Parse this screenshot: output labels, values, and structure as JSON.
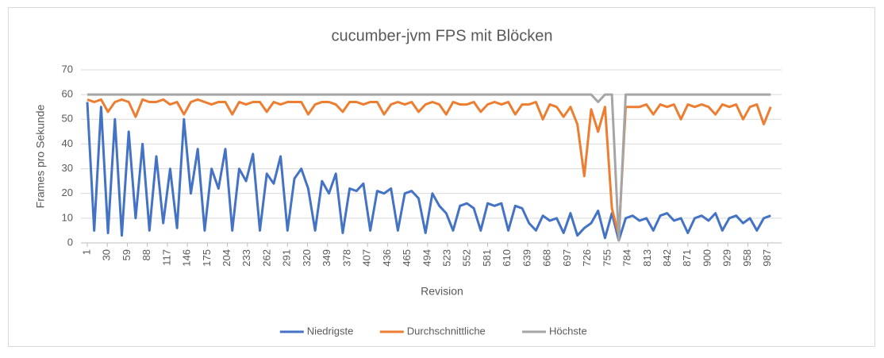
{
  "chart_data": {
    "type": "line",
    "title": "cucumber-jvm FPS mit Blöcken",
    "x_label": "Revision",
    "y_label": "Frames pro Sekunde",
    "x": [
      1,
      11,
      21,
      31,
      41,
      51,
      61,
      71,
      81,
      91,
      101,
      111,
      121,
      131,
      141,
      151,
      161,
      171,
      181,
      191,
      201,
      211,
      221,
      231,
      241,
      251,
      261,
      271,
      281,
      291,
      301,
      311,
      321,
      331,
      341,
      351,
      361,
      371,
      381,
      391,
      401,
      411,
      421,
      431,
      441,
      451,
      461,
      471,
      481,
      491,
      501,
      511,
      521,
      531,
      541,
      551,
      561,
      571,
      581,
      591,
      601,
      611,
      621,
      631,
      641,
      651,
      661,
      671,
      681,
      691,
      701,
      711,
      721,
      731,
      741,
      751,
      761,
      771,
      781,
      791,
      801,
      811,
      821,
      831,
      841,
      851,
      861,
      871,
      881,
      891,
      901,
      911,
      921,
      931,
      941,
      951,
      961,
      971,
      981,
      991
    ],
    "xlim": [
      1,
      1000
    ],
    "xticks": [
      1,
      30,
      59,
      88,
      117,
      146,
      175,
      204,
      233,
      262,
      291,
      320,
      349,
      378,
      407,
      436,
      465,
      494,
      523,
      552,
      581,
      610,
      639,
      668,
      697,
      726,
      755,
      784,
      813,
      842,
      871,
      900,
      929,
      958,
      987
    ],
    "ylim": [
      0,
      70
    ],
    "yticks": [
      0,
      10,
      20,
      30,
      40,
      50,
      60,
      70
    ],
    "grid": true,
    "legend": "bottom",
    "series": [
      {
        "name": "Niedrigste",
        "color": "#4472c4",
        "values": [
          57,
          5,
          55,
          4,
          50,
          3,
          45,
          10,
          40,
          5,
          35,
          8,
          30,
          6,
          50,
          20,
          38,
          5,
          30,
          22,
          38,
          5,
          30,
          25,
          36,
          5,
          28,
          24,
          35,
          5,
          26,
          30,
          22,
          5,
          25,
          20,
          28,
          4,
          22,
          21,
          24,
          5,
          21,
          20,
          22,
          5,
          20,
          21,
          18,
          4,
          20,
          15,
          12,
          5,
          15,
          16,
          14,
          5,
          16,
          15,
          16,
          5,
          15,
          14,
          8,
          5,
          11,
          9,
          10,
          4,
          12,
          3,
          6,
          8,
          13,
          2,
          12,
          1,
          10,
          11,
          9,
          10,
          5,
          11,
          12,
          9,
          10,
          4,
          10,
          11,
          9,
          12,
          5,
          10,
          11,
          8,
          10,
          5,
          10,
          11
        ]
      },
      {
        "name": "Durchschnittliche",
        "color": "#ed7d31",
        "values": [
          58,
          57,
          58,
          53,
          57,
          58,
          57,
          51,
          58,
          57,
          57,
          58,
          56,
          57,
          52,
          57,
          58,
          57,
          56,
          57,
          57,
          52,
          57,
          56,
          57,
          57,
          53,
          57,
          56,
          57,
          57,
          57,
          52,
          56,
          57,
          57,
          56,
          53,
          57,
          57,
          56,
          57,
          57,
          52,
          56,
          57,
          56,
          57,
          53,
          56,
          57,
          56,
          52,
          57,
          56,
          56,
          57,
          53,
          56,
          57,
          56,
          57,
          52,
          56,
          56,
          57,
          50,
          56,
          55,
          51,
          55,
          48,
          27,
          54,
          45,
          55,
          14,
          3,
          55,
          55,
          55,
          56,
          52,
          56,
          55,
          56,
          50,
          56,
          55,
          56,
          55,
          52,
          56,
          55,
          56,
          50,
          55,
          56,
          48,
          55
        ]
      },
      {
        "name": "Höchste",
        "color": "#a5a5a5",
        "values": [
          60,
          60,
          60,
          60,
          60,
          60,
          60,
          60,
          60,
          60,
          60,
          60,
          60,
          60,
          60,
          60,
          60,
          60,
          60,
          60,
          60,
          60,
          60,
          60,
          60,
          60,
          60,
          60,
          60,
          60,
          60,
          60,
          60,
          60,
          60,
          60,
          60,
          60,
          60,
          60,
          60,
          60,
          60,
          60,
          60,
          60,
          60,
          60,
          60,
          60,
          60,
          60,
          60,
          60,
          60,
          60,
          60,
          60,
          60,
          60,
          60,
          60,
          60,
          60,
          60,
          60,
          60,
          60,
          60,
          60,
          60,
          60,
          60,
          60,
          57,
          60,
          60,
          1,
          60,
          60,
          60,
          60,
          60,
          60,
          60,
          60,
          60,
          60,
          60,
          60,
          60,
          60,
          60,
          60,
          60,
          60,
          60,
          60,
          60,
          60
        ]
      }
    ]
  }
}
